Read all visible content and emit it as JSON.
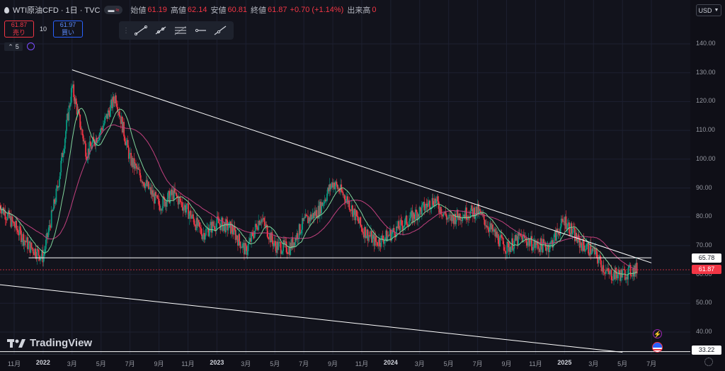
{
  "header": {
    "symbol": "WTI原油CFD · 1日 · TVC",
    "open_label": "始値",
    "open": "61.19",
    "high_label": "高値",
    "high": "62.14",
    "low_label": "安値",
    "low": "60.81",
    "close_label": "終値",
    "close": "61.87",
    "change": "+0.70 (+1.14%)",
    "volume_label": "出来高",
    "volume": "0"
  },
  "trade": {
    "sell_price": "61.87",
    "sell_label": "売り",
    "spread": "10",
    "buy_price": "61.97",
    "buy_label": "買い"
  },
  "indicator_toggle": "5",
  "currency": "USD",
  "logo_text": "TradingView",
  "colors": {
    "up": "#089981",
    "down": "#f23645",
    "line_white": "#ffffff",
    "ma_fast": "#7fd49b",
    "ma_slow": "#c2407e"
  },
  "chart_data": {
    "type": "candlestick",
    "y_ticks": [
      "140.00",
      "130.00",
      "120.00",
      "110.00",
      "100.00",
      "90.00",
      "80.00",
      "70.00",
      "60.00",
      "50.00",
      "40.00"
    ],
    "x_ticks": [
      "11月",
      "2022",
      "3月",
      "5月",
      "7月",
      "9月",
      "11月",
      "2023",
      "3月",
      "5月",
      "7月",
      "9月",
      "11月",
      "2024",
      "3月",
      "5月",
      "7月",
      "9月",
      "11月",
      "2025",
      "3月",
      "5月",
      "7月"
    ],
    "ylim": [
      33,
      144
    ],
    "price_tags": {
      "support": "65.78",
      "last": "61.87",
      "bottom": "33.22"
    },
    "approx_close_path": [
      [
        "2021-10",
        84
      ],
      [
        "2021-12",
        70
      ],
      [
        "2022-01",
        66
      ],
      [
        "2022-02",
        90
      ],
      [
        "2022-03",
        125
      ],
      [
        "2022-04",
        102
      ],
      [
        "2022-05",
        110
      ],
      [
        "2022-06",
        122
      ],
      [
        "2022-07",
        100
      ],
      [
        "2022-08",
        92
      ],
      [
        "2022-09",
        84
      ],
      [
        "2022-10",
        88
      ],
      [
        "2022-11",
        82
      ],
      [
        "2022-12",
        74
      ],
      [
        "2023-01",
        78
      ],
      [
        "2023-02",
        76
      ],
      [
        "2023-03",
        68
      ],
      [
        "2023-04",
        80
      ],
      [
        "2023-05",
        70
      ],
      [
        "2023-06",
        69
      ],
      [
        "2023-07",
        78
      ],
      [
        "2023-08",
        82
      ],
      [
        "2023-09",
        92
      ],
      [
        "2023-10",
        86
      ],
      [
        "2023-11",
        76
      ],
      [
        "2023-12",
        71
      ],
      [
        "2024-01",
        74
      ],
      [
        "2024-02",
        78
      ],
      [
        "2024-03",
        82
      ],
      [
        "2024-04",
        86
      ],
      [
        "2024-05",
        79
      ],
      [
        "2024-06",
        81
      ],
      [
        "2024-07",
        82
      ],
      [
        "2024-08",
        75
      ],
      [
        "2024-09",
        69
      ],
      [
        "2024-10",
        73
      ],
      [
        "2024-11",
        70
      ],
      [
        "2024-12",
        70
      ],
      [
        "2025-01",
        79
      ],
      [
        "2025-02",
        71
      ],
      [
        "2025-03",
        68
      ],
      [
        "2025-04",
        60
      ],
      [
        "2025-05",
        60
      ],
      [
        "2025-06",
        61.87
      ]
    ],
    "trendlines": [
      {
        "name": "upper",
        "from": [
          "2022-03",
          131
        ],
        "to": [
          "2025-07",
          64
        ]
      },
      {
        "name": "support",
        "from": [
          "2021-12",
          65.78
        ],
        "to": [
          "2025-07",
          65.78
        ]
      },
      {
        "name": "lower",
        "from": [
          "2021-09",
          57
        ],
        "to": [
          "2025-05",
          33
        ]
      }
    ]
  }
}
